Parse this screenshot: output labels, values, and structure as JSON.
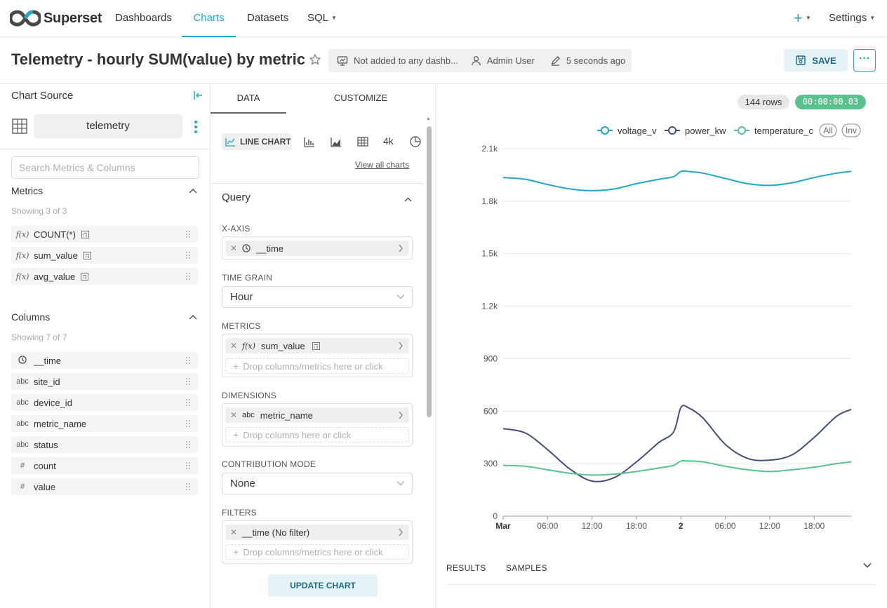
{
  "nav": {
    "brand": "Superset",
    "items": [
      {
        "label": "Dashboards"
      },
      {
        "label": "Charts",
        "active": true
      },
      {
        "label": "Datasets"
      },
      {
        "label": "SQL"
      }
    ],
    "plus_label": "+",
    "settings_label": "Settings"
  },
  "header": {
    "title": "Telemetry - hourly SUM(value) by metric",
    "dashboards_status": "Not added to any dashb...",
    "owner": "Admin User",
    "modified": "5 seconds ago",
    "save_label": "SAVE",
    "more_label": "···"
  },
  "source": {
    "label": "Chart Source",
    "dataset": "telemetry",
    "search_placeholder": "Search Metrics & Columns",
    "metrics_title": "Metrics",
    "metrics_count": "Showing 3 of 3",
    "metrics": [
      {
        "icon": "f(x)",
        "name": "COUNT(*)"
      },
      {
        "icon": "f(x)",
        "name": "sum_value"
      },
      {
        "icon": "f(x)",
        "name": "avg_value"
      }
    ],
    "columns_title": "Columns",
    "columns_count": "Showing 7 of 7",
    "columns": [
      {
        "icon": "clock",
        "name": "__time"
      },
      {
        "icon": "abc",
        "name": "site_id"
      },
      {
        "icon": "abc",
        "name": "device_id"
      },
      {
        "icon": "abc",
        "name": "metric_name"
      },
      {
        "icon": "abc",
        "name": "status"
      },
      {
        "icon": "#",
        "name": "count"
      },
      {
        "icon": "#",
        "name": "value"
      }
    ]
  },
  "controls": {
    "tabs": [
      "DATA",
      "CUSTOMIZE"
    ],
    "viz_type": "LINE CHART",
    "viz_4k": "4k",
    "view_all": "View all charts",
    "query_title": "Query",
    "x_axis_label": "X-AXIS",
    "x_axis_value": "__time",
    "time_grain_label": "TIME GRAIN",
    "time_grain_value": "Hour",
    "metrics_label": "METRICS",
    "metrics_value": "sum_value",
    "metrics_drop": "Drop columns/metrics here or click",
    "dimensions_label": "DIMENSIONS",
    "dimensions_value": "metric_name",
    "dimensions_drop": "Drop columns here or click",
    "contribution_label": "CONTRIBUTION MODE",
    "contribution_value": "None",
    "filters_label": "FILTERS",
    "filters_value": "__time (No filter)",
    "filters_drop": "Drop columns/metrics here or click",
    "update_label": "UPDATE CHART"
  },
  "results": {
    "row_count": "144 rows",
    "elapsed": "00:00:00.03",
    "tabs": [
      "RESULTS",
      "SAMPLES"
    ]
  },
  "chart_data": {
    "type": "line",
    "legend_position": "top-right",
    "legend_controls": [
      "All",
      "Inv"
    ],
    "x_ticks": [
      "Mar",
      "06:00",
      "12:00",
      "18:00",
      "2",
      "06:00",
      "12:00",
      "18:00"
    ],
    "y_ticks": [
      "0",
      "300",
      "600",
      "900",
      "1.2k",
      "1.5k",
      "1.8k",
      "2.1k"
    ],
    "ylim": [
      0,
      2100
    ],
    "x_hours": [
      0,
      3,
      6,
      9,
      12,
      15,
      18,
      21,
      23,
      24,
      25,
      27,
      30,
      33,
      36,
      39,
      42,
      45,
      47
    ],
    "series": [
      {
        "name": "voltage_v",
        "color": "#20a7c9",
        "values": [
          1935,
          1925,
          1895,
          1870,
          1860,
          1870,
          1900,
          1925,
          1940,
          1970,
          1970,
          1960,
          1930,
          1900,
          1890,
          1905,
          1935,
          1960,
          1970
        ]
      },
      {
        "name": "power_kw",
        "color": "#454e7c",
        "values": [
          500,
          475,
          380,
          270,
          200,
          220,
          310,
          420,
          480,
          620,
          620,
          560,
          410,
          330,
          320,
          350,
          450,
          570,
          610
        ]
      },
      {
        "name": "temperature_c",
        "color": "#5ac18e",
        "values": [
          290,
          285,
          265,
          245,
          235,
          240,
          255,
          275,
          290,
          315,
          315,
          310,
          285,
          265,
          255,
          265,
          280,
          300,
          310
        ]
      }
    ]
  }
}
